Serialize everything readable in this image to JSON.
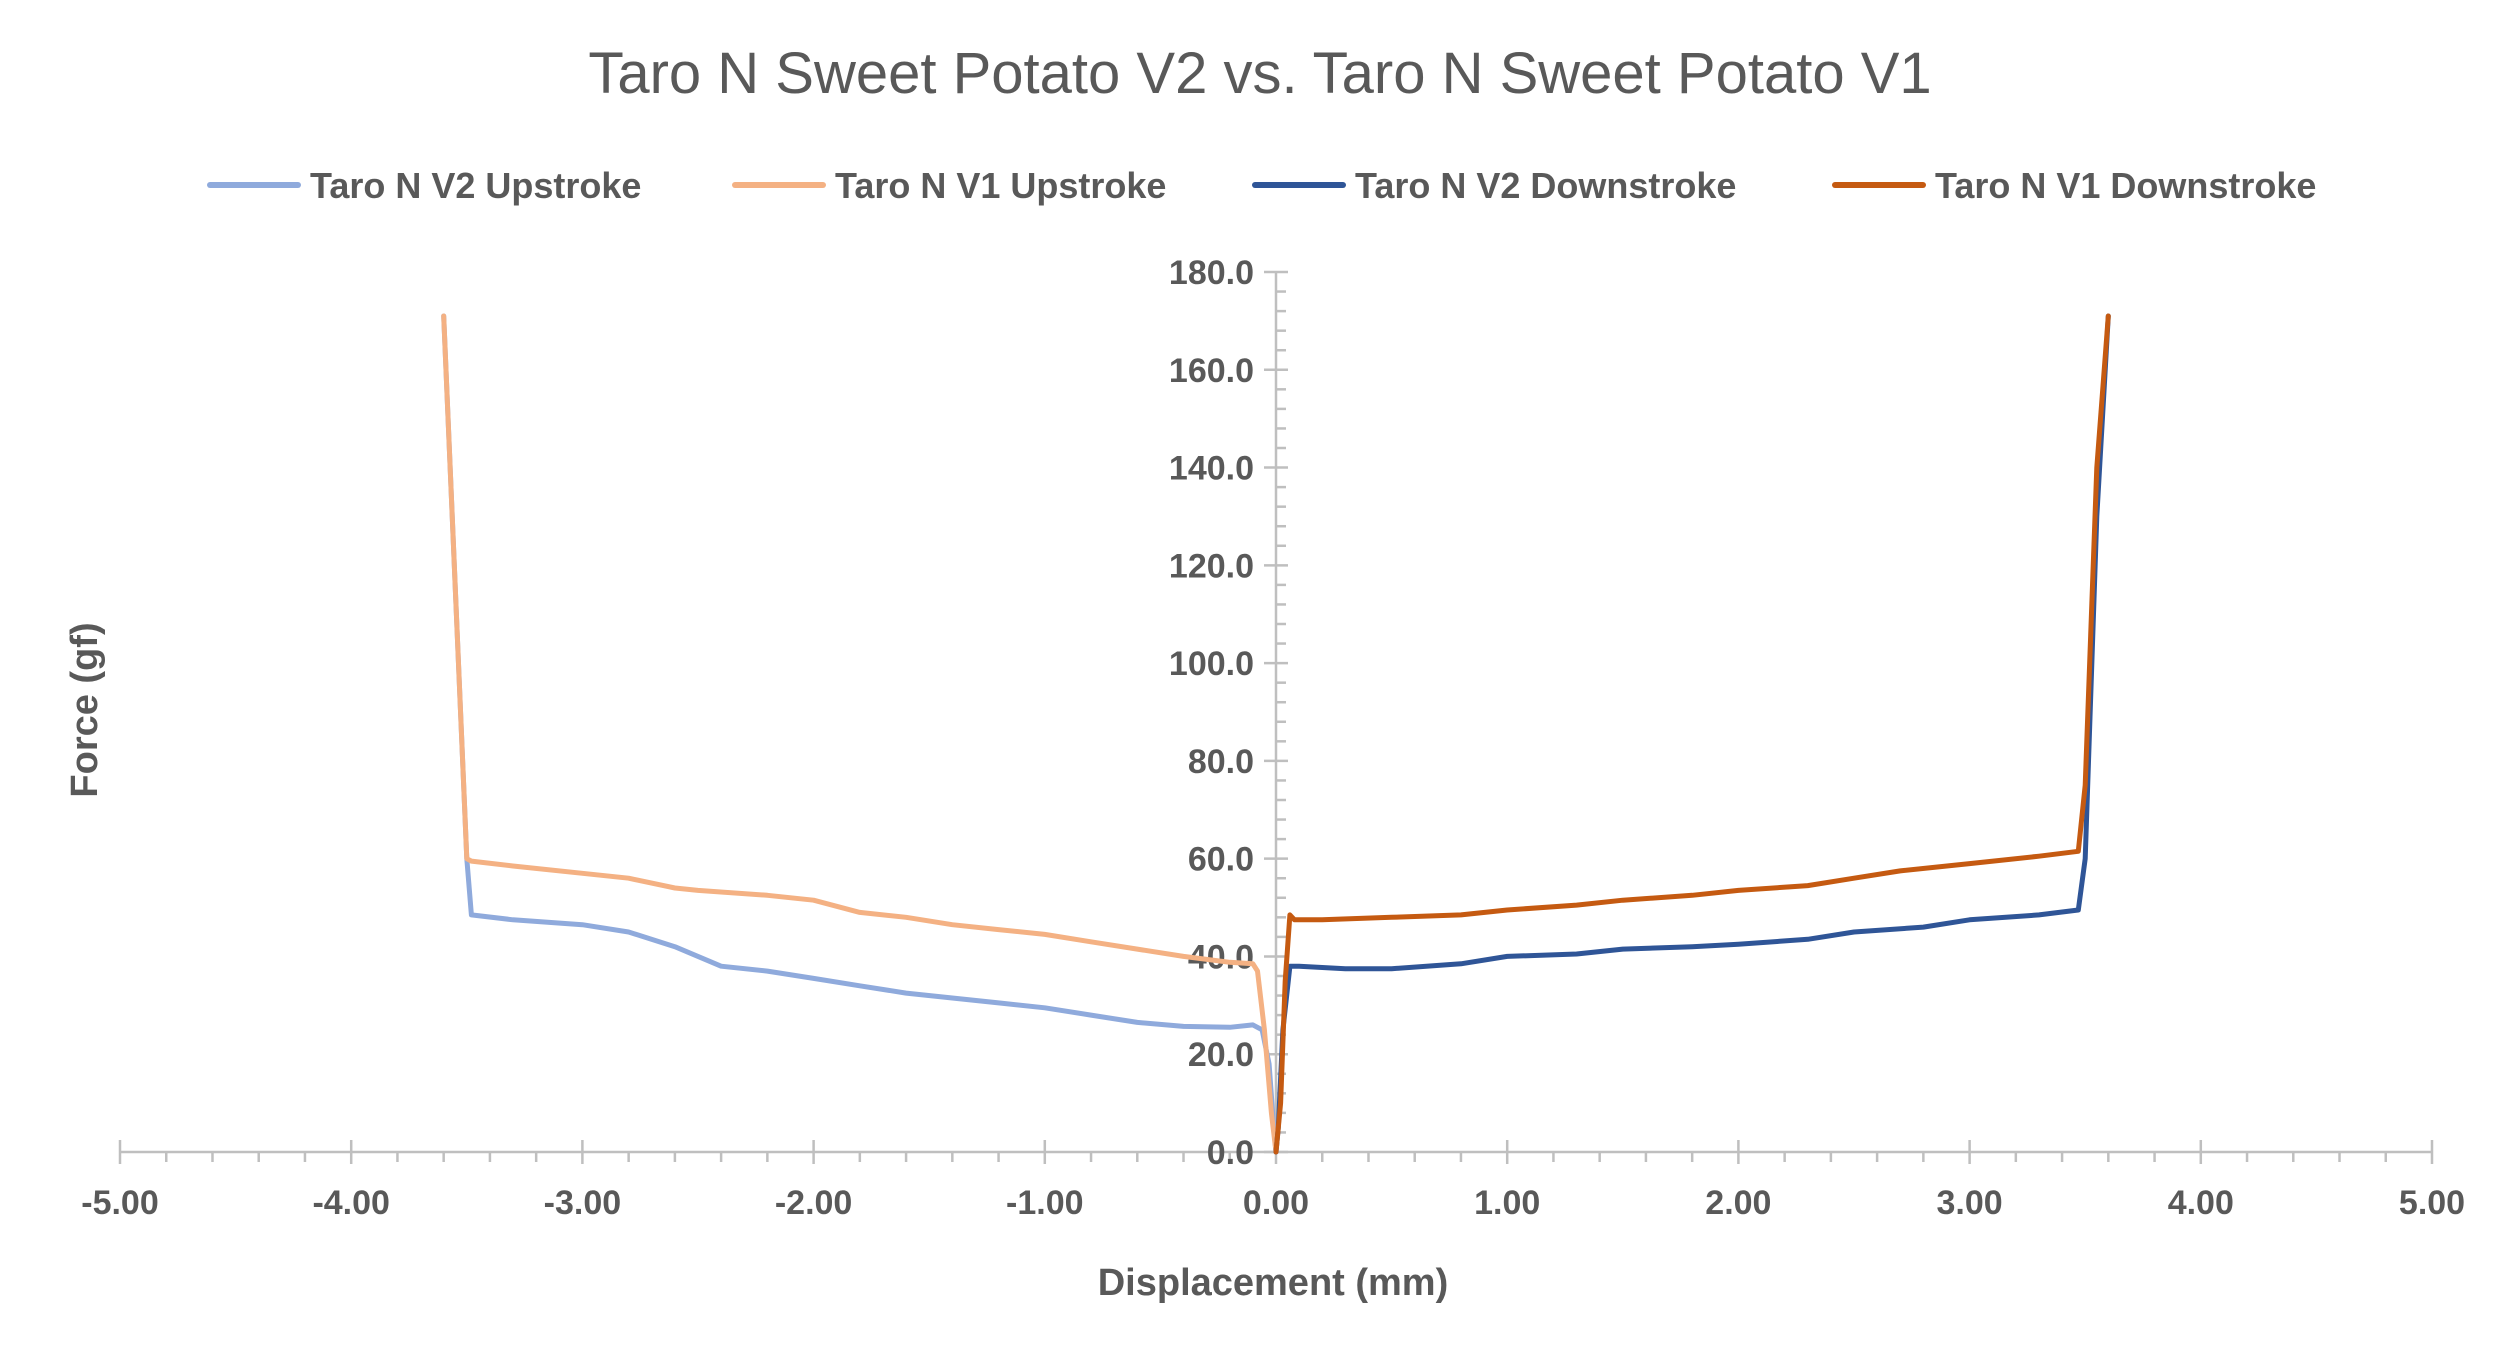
{
  "chart_data": {
    "type": "line",
    "title": "Taro N Sweet Potato V2 vs. Taro N Sweet Potato V1",
    "xlabel": "Displacement (mm)",
    "ylabel": "Force (gf)",
    "xlim": [
      -5,
      5
    ],
    "ylim": [
      0,
      180
    ],
    "x_ticks": [
      "-5.00",
      "-4.00",
      "-3.00",
      "-2.00",
      "-1.00",
      "0.00",
      "1.00",
      "2.00",
      "3.00",
      "4.00",
      "5.00"
    ],
    "y_ticks": [
      "0.0",
      "20.0",
      "40.0",
      "60.0",
      "80.0",
      "100.0",
      "120.0",
      "140.0",
      "160.0",
      "180.0"
    ],
    "legend_position": "top",
    "series": [
      {
        "name": "Taro N V2 Upstroke",
        "color": "#8faadc",
        "x": [
          -3.6,
          -3.5,
          -3.48,
          -3.3,
          -3.0,
          -2.8,
          -2.6,
          -2.5,
          -2.4,
          -2.2,
          -2.0,
          -1.8,
          -1.6,
          -1.4,
          -1.2,
          -1.0,
          -0.8,
          -0.6,
          -0.4,
          -0.2,
          -0.1,
          -0.06,
          -0.03,
          -0.01,
          0.0
        ],
        "y": [
          171,
          60,
          48.5,
          47.5,
          46.5,
          45,
          42,
          40,
          38,
          37,
          35.5,
          34,
          32.5,
          31.5,
          30.5,
          29.5,
          28,
          26.5,
          25.7,
          25.5,
          26,
          25,
          18,
          5,
          0
        ]
      },
      {
        "name": "Taro N V1 Upstroke",
        "color": "#f4b183",
        "x": [
          -3.6,
          -3.5,
          -3.48,
          -3.3,
          -3.0,
          -2.8,
          -2.6,
          -2.5,
          -2.2,
          -2.0,
          -1.8,
          -1.6,
          -1.4,
          -1.2,
          -1.0,
          -0.8,
          -0.6,
          -0.4,
          -0.2,
          -0.1,
          -0.08,
          -0.05,
          -0.02,
          0.0
        ],
        "y": [
          171,
          60,
          59.5,
          58.5,
          57,
          56,
          54,
          53.5,
          52.5,
          51.5,
          49,
          48,
          46.5,
          45.5,
          44.5,
          43,
          41.5,
          40,
          38.8,
          38.5,
          37,
          25,
          8,
          0
        ]
      },
      {
        "name": "Taro N V2 Downstroke",
        "color": "#2f5597",
        "x": [
          0.0,
          0.01,
          0.03,
          0.06,
          0.1,
          0.3,
          0.5,
          0.8,
          1.0,
          1.3,
          1.5,
          1.8,
          2.0,
          2.3,
          2.5,
          2.8,
          3.0,
          3.3,
          3.47,
          3.5,
          3.55,
          3.6
        ],
        "y": [
          0,
          5,
          25,
          38,
          38,
          37.5,
          37.5,
          38.5,
          40,
          40.5,
          41.5,
          42,
          42.5,
          43.5,
          45,
          46,
          47.5,
          48.5,
          49.5,
          60,
          130,
          171
        ]
      },
      {
        "name": "Taro N V1 Downstroke",
        "color": "#c55a11",
        "x": [
          0.0,
          0.02,
          0.04,
          0.06,
          0.08,
          0.2,
          0.5,
          0.8,
          1.0,
          1.3,
          1.5,
          1.8,
          2.0,
          2.3,
          2.5,
          2.7,
          3.0,
          3.3,
          3.47,
          3.5,
          3.55,
          3.6
        ],
        "y": [
          0,
          10,
          35,
          48.5,
          47.5,
          47.5,
          48,
          48.5,
          49.5,
          50.5,
          51.5,
          52.5,
          53.5,
          54.5,
          56,
          57.5,
          59,
          60.5,
          61.5,
          75,
          140,
          171
        ]
      }
    ]
  }
}
